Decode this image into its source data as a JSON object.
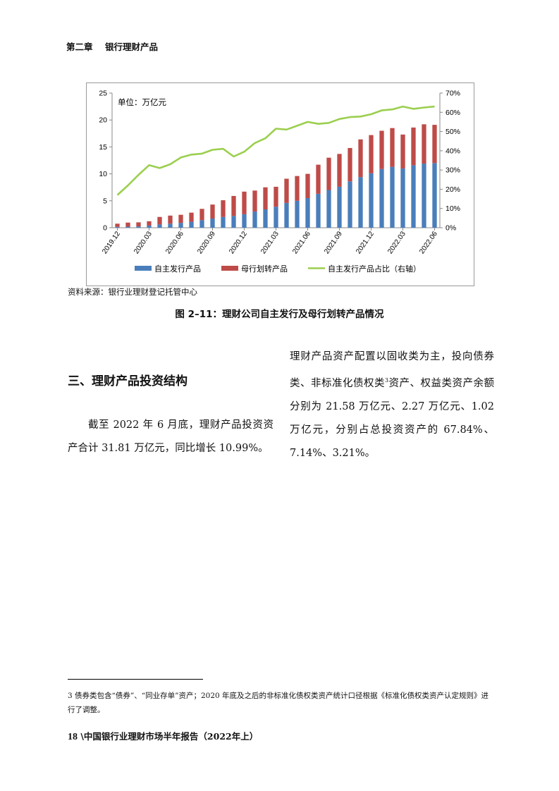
{
  "header": {
    "chapter": "第二章",
    "title": "银行理财产品"
  },
  "chart": {
    "unit_label": "单位：万亿元",
    "legend": [
      "自主发行产品",
      "母行划转产品",
      "自主发行产品占比（右轴）"
    ],
    "colors": {
      "self": "#4a7ebb",
      "parent": "#be4b48",
      "ratio": "#9bcf4f"
    }
  },
  "chart_data": {
    "type": "bar",
    "stacked": true,
    "x": [
      "2019.12",
      "2020.01",
      "2020.02",
      "2020.03",
      "2020.04",
      "2020.05",
      "2020.06",
      "2020.07",
      "2020.08",
      "2020.09",
      "2020.10",
      "2020.11",
      "2020.12",
      "2021.01",
      "2021.02",
      "2021.03",
      "2021.04",
      "2021.05",
      "2021.06",
      "2021.07",
      "2021.08",
      "2021.09",
      "2021.10",
      "2021.11",
      "2021.12",
      "2022.01",
      "2022.02",
      "2022.03",
      "2022.04",
      "2022.05",
      "2022.06"
    ],
    "x_tick_labels": [
      "2019.12",
      "2020.03",
      "2020.06",
      "2020.09",
      "2020.12",
      "2021.03",
      "2021.06",
      "2021.09",
      "2021.12",
      "2022.03",
      "2022.06"
    ],
    "series": [
      {
        "name": "自主发行产品",
        "type": "bar",
        "axis": "left",
        "values": [
          0.15,
          0.2,
          0.25,
          0.4,
          0.6,
          0.75,
          0.9,
          1.1,
          1.4,
          1.7,
          2.0,
          2.2,
          2.5,
          3.0,
          3.4,
          3.9,
          4.6,
          5.0,
          5.5,
          6.3,
          7.0,
          7.6,
          8.6,
          9.4,
          10.1,
          10.9,
          11.3,
          11.0,
          11.6,
          11.9,
          12.0
        ]
      },
      {
        "name": "母行划转产品",
        "type": "bar",
        "axis": "left",
        "values": [
          0.6,
          0.75,
          0.75,
          0.8,
          1.4,
          1.5,
          1.5,
          1.7,
          2.1,
          2.6,
          3.1,
          3.7,
          4.2,
          3.9,
          4.1,
          3.7,
          4.5,
          4.6,
          4.5,
          5.4,
          6.0,
          6.1,
          6.2,
          7.0,
          7.1,
          7.1,
          7.2,
          6.3,
          7.0,
          7.3,
          7.1
        ]
      },
      {
        "name": "自主发行产品占比（右轴）",
        "type": "line",
        "axis": "right",
        "values": [
          17,
          22,
          27.5,
          32.5,
          31,
          33,
          36.5,
          38,
          38.5,
          40.5,
          41,
          37,
          39.5,
          44,
          46.5,
          51.5,
          51,
          53,
          55,
          54,
          54.5,
          56.5,
          57.5,
          57.8,
          59,
          61,
          61.5,
          63,
          61.8,
          62.5,
          63
        ]
      }
    ],
    "y_left": {
      "min": 0,
      "max": 25,
      "ticks": [
        "0",
        "5",
        "10",
        "15",
        "20",
        "25"
      ]
    },
    "y_right": {
      "min": 0,
      "max": 70,
      "ticks": [
        "0%",
        "10%",
        "20%",
        "30%",
        "40%",
        "50%",
        "60%",
        "70%"
      ]
    },
    "grid": false,
    "legend_position": "bottom"
  },
  "source_note": "资料来源：银行业理财登记托管中心",
  "figure_caption": "图 2–11：理财公司自主发行及母行划转产品情况",
  "section_heading": "三、理财产品投资结构",
  "left_paragraph": "截至 2022 年 6 月底，理财产品投资资产合计 31.81 万亿元，同比增长 10.99%。",
  "right_paragraph": {
    "before_sup": "理财产品资产配置以固收类为主，投向债券类、非标准化债权类",
    "sup": "3",
    "after_sup": "资产、权益类资产余额分别为 21.58 万亿元、2.27 万亿元、1.02 万亿元，分别占总投资资产的 67.84%、7.14%、3.21%。"
  },
  "footnote": "3 债券类包含“债券”、“同业存单”资产；2020 年底及之后的非标准化债权类资产统计口径根据《标准化债权类资产认定规则》进行了调整。",
  "footer": {
    "page_number": "18",
    "separator": " \\",
    "report_title": "中国银行业理财市场半年报告（2022年上）"
  }
}
